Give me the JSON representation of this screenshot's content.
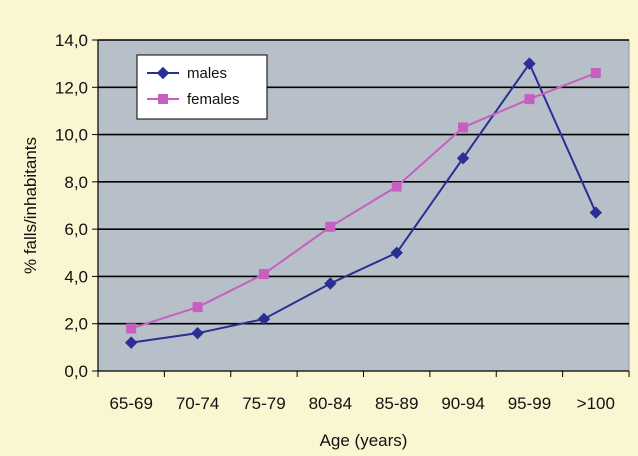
{
  "chart_data": {
    "type": "line",
    "categories": [
      "65-69",
      "70-74",
      "75-79",
      "80-84",
      "85-89",
      "90-94",
      "95-99",
      ">100"
    ],
    "series": [
      {
        "name": "males",
        "color": "#2a2f93",
        "marker": "diamond",
        "values": [
          1.2,
          1.6,
          2.2,
          3.7,
          5.0,
          9.0,
          13.0,
          6.7
        ]
      },
      {
        "name": "females",
        "color": "#c85fc0",
        "marker": "square",
        "values": [
          1.8,
          2.7,
          4.1,
          6.1,
          7.8,
          10.3,
          11.5,
          12.6
        ]
      }
    ],
    "xlabel": "Age (years)",
    "ylabel": "% falls/inhabitants",
    "ylim": [
      0,
      14
    ],
    "y_ticks": [
      "0,0",
      "2,0",
      "4,0",
      "6,0",
      "8,0",
      "10,0",
      "12,0",
      "14,0"
    ],
    "grid": true,
    "legend_position": "top-left",
    "plot_background": "#b7bfc9",
    "page_background": "#fbf6d2"
  }
}
